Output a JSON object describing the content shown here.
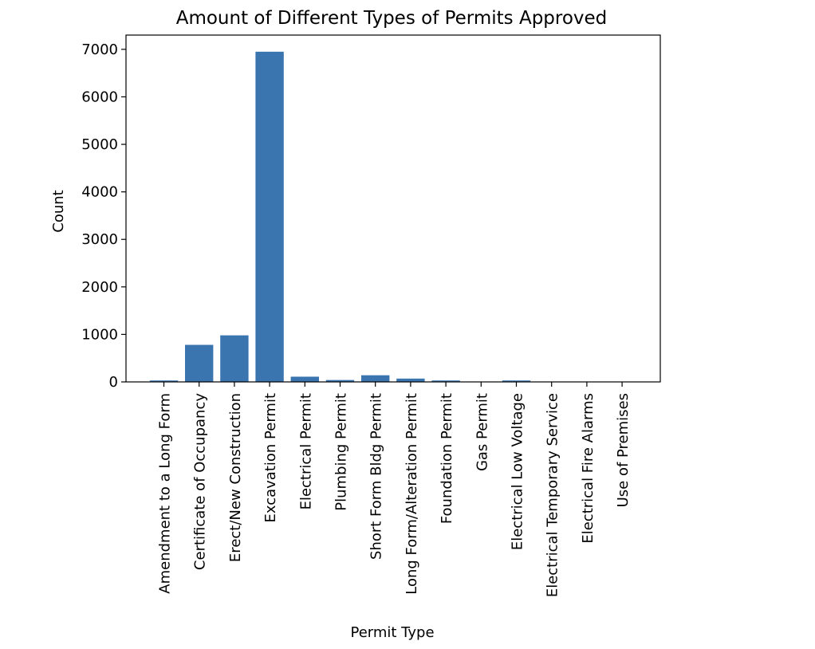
{
  "chart_data": {
    "type": "bar",
    "title": "Amount of Different Types of Permits Approved",
    "xlabel": "Permit Type",
    "ylabel": "Count",
    "categories": [
      "Amendment to a Long Form",
      "Certificate of Occupancy",
      "Erect/New Construction",
      "Excavation Permit",
      "Electrical Permit",
      "Plumbing Permit",
      "Short Form Bldg Permit",
      "Long Form/Alteration Permit",
      "Foundation Permit",
      "Gas Permit",
      "Electrical Low Voltage",
      "Electrical Temporary Service",
      "Electrical Fire Alarms",
      "Use of Premises"
    ],
    "values": [
      30,
      780,
      980,
      6950,
      110,
      40,
      140,
      70,
      30,
      5,
      30,
      5,
      3,
      3
    ],
    "ylim": [
      0,
      7300
    ],
    "yticks": [
      0,
      1000,
      2000,
      3000,
      4000,
      5000,
      6000,
      7000
    ],
    "grid": false,
    "bar_color": "#3a75af"
  }
}
